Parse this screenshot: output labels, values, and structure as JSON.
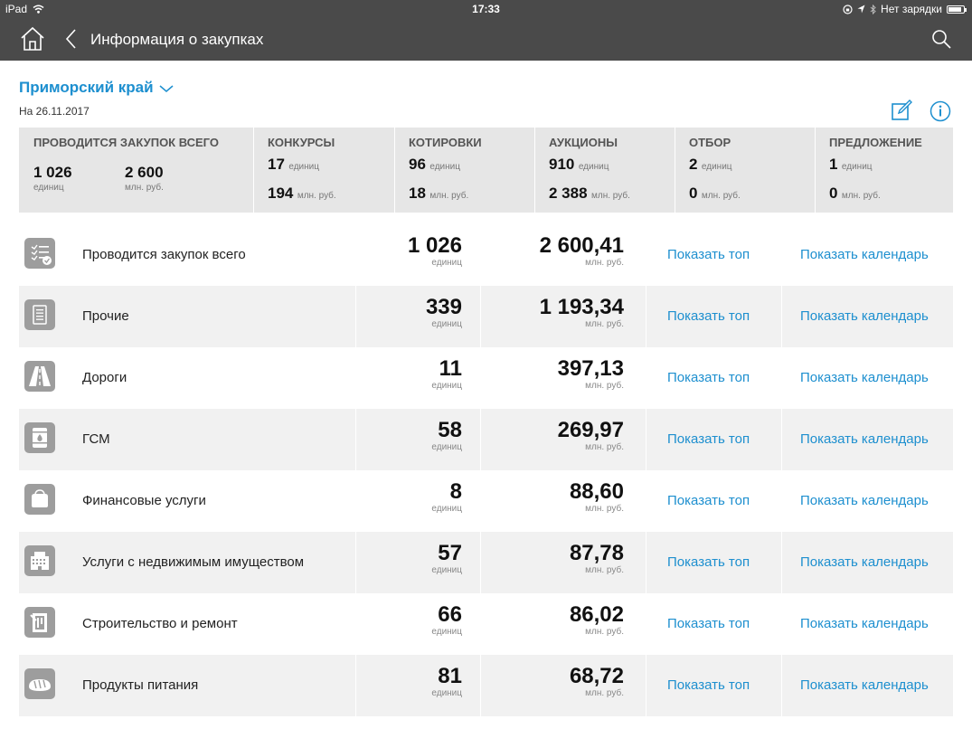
{
  "status_bar": {
    "device": "iPad",
    "time": "17:33",
    "charging": "Нет зарядки",
    "battery_level": 0.85
  },
  "nav": {
    "title": "Информация о закупках"
  },
  "region": {
    "name": "Приморский край",
    "date": "На 26.11.2017"
  },
  "summary": {
    "total": {
      "header": "ПРОВОДИТСЯ ЗАКУПОК ВСЕГО",
      "count": "1 026",
      "count_unit": "единиц",
      "sum": "2 600",
      "sum_unit": "млн. руб."
    },
    "categories": [
      {
        "header": "КОНКУРСЫ",
        "count": "17",
        "count_unit": "единиц",
        "sum": "194",
        "sum_unit": "млн. руб."
      },
      {
        "header": "КОТИРОВКИ",
        "count": "96",
        "count_unit": "единиц",
        "sum": "18",
        "sum_unit": "млн. руб."
      },
      {
        "header": "АУКЦИОНЫ",
        "count": "910",
        "count_unit": "единиц",
        "sum": "2 388",
        "sum_unit": "млн. руб."
      },
      {
        "header": "ОТБОР",
        "count": "2",
        "count_unit": "единиц",
        "sum": "0",
        "sum_unit": "млн. руб."
      },
      {
        "header": "ПРЕДЛОЖЕНИЕ",
        "count": "1",
        "count_unit": "единиц",
        "sum": "0",
        "sum_unit": "млн. руб."
      }
    ]
  },
  "rows": [
    {
      "icon": "checklist-icon",
      "label": "Проводится закупок всего",
      "count": "1 026",
      "count_unit": "единиц",
      "sum": "2 600,41",
      "sum_unit": "млн. руб.",
      "top": "Показать топ",
      "calendar": "Показать календарь"
    },
    {
      "icon": "document-icon",
      "label": "Прочие",
      "count": "339",
      "count_unit": "единиц",
      "sum": "1 193,34",
      "sum_unit": "млн. руб.",
      "top": "Показать топ",
      "calendar": "Показать календарь"
    },
    {
      "icon": "road-icon",
      "label": "Дороги",
      "count": "11",
      "count_unit": "единиц",
      "sum": "397,13",
      "sum_unit": "млн. руб.",
      "top": "Показать топ",
      "calendar": "Показать календарь"
    },
    {
      "icon": "fuel-barrel-icon",
      "label": "ГСМ",
      "count": "58",
      "count_unit": "единиц",
      "sum": "269,97",
      "sum_unit": "млн. руб.",
      "top": "Показать топ",
      "calendar": "Показать календарь"
    },
    {
      "icon": "wallet-icon",
      "label": "Финансовые услуги",
      "count": "8",
      "count_unit": "единиц",
      "sum": "88,60",
      "sum_unit": "млн. руб.",
      "top": "Показать топ",
      "calendar": "Показать календарь"
    },
    {
      "icon": "building-icon",
      "label": "Услуги с недвижимым имуществом",
      "count": "57",
      "count_unit": "единиц",
      "sum": "87,78",
      "sum_unit": "млн. руб.",
      "top": "Показать топ",
      "calendar": "Показать календарь"
    },
    {
      "icon": "construction-icon",
      "label": "Строительство и ремонт",
      "count": "66",
      "count_unit": "единиц",
      "sum": "86,02",
      "sum_unit": "млн. руб.",
      "top": "Показать топ",
      "calendar": "Показать календарь"
    },
    {
      "icon": "bread-icon",
      "label": "Продукты питания",
      "count": "81",
      "count_unit": "единиц",
      "sum": "68,72",
      "sum_unit": "млн. руб.",
      "top": "Показать топ",
      "calendar": "Показать календарь"
    }
  ],
  "colors": {
    "bar": "#4a4a4a",
    "accent": "#1d8fcf",
    "panel": "#e6e6e6",
    "row_alt": "#f1f1f1",
    "icon_bg": "#9d9d9d"
  }
}
